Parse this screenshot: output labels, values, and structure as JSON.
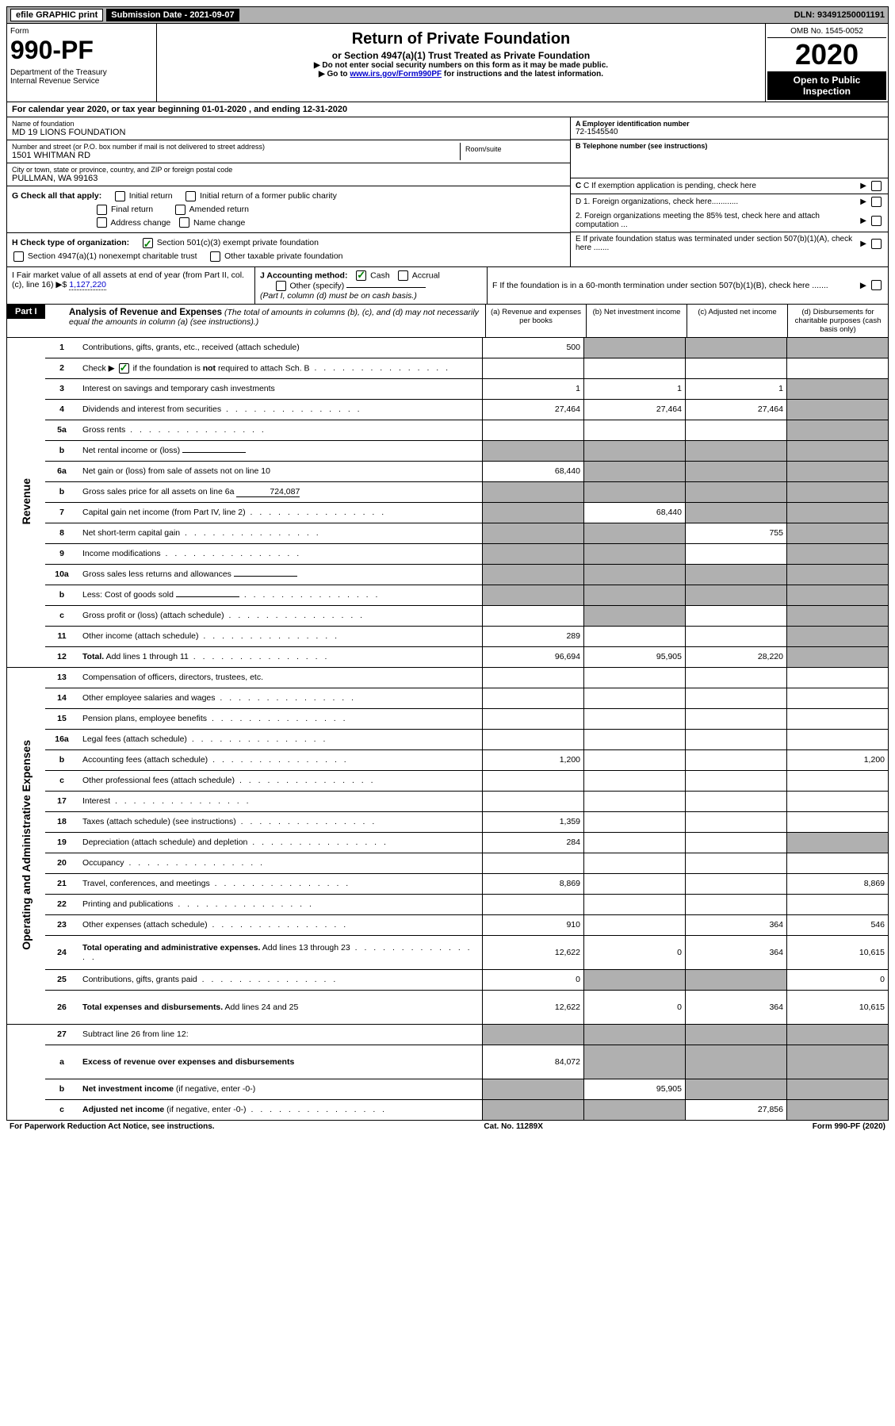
{
  "top": {
    "efile": "efile GRAPHIC print",
    "submission": "Submission Date - 2021-09-07",
    "dln": "DLN: 93491250001191"
  },
  "hdr": {
    "form": "Form",
    "form_no": "990-PF",
    "dept": "Department of the Treasury\nInternal Revenue Service",
    "title": "Return of Private Foundation",
    "subtitle": "or Section 4947(a)(1) Trust Treated as Private Foundation",
    "note1": "▶ Do not enter social security numbers on this form as it may be made public.",
    "note2": "▶ Go to ",
    "note2_link": "www.irs.gov/Form990PF",
    "note2_tail": " for instructions and the latest information.",
    "omb": "OMB No. 1545-0052",
    "year": "2020",
    "open": "Open to Public Inspection"
  },
  "cal": "For calendar year 2020, or tax year beginning 01-01-2020                            , and ending 12-31-2020",
  "name": {
    "label": "Name of foundation",
    "val": "MD 19 LIONS FOUNDATION"
  },
  "ein": {
    "label": "A Employer identification number",
    "val": "72-1545540"
  },
  "addr": {
    "label": "Number and street (or P.O. box number if mail is not delivered to street address)",
    "val": "1501 WHITMAN RD",
    "room_label": "Room/suite"
  },
  "tel": {
    "label": "B Telephone number (see instructions)"
  },
  "city": {
    "label": "City or town, state or province, country, and ZIP or foreign postal code",
    "val": "PULLMAN, WA  99163"
  },
  "c_label": "C If exemption application is pending, check here",
  "g": {
    "label": "G Check all that apply:",
    "initial": "Initial return",
    "initial_former": "Initial return of a former public charity",
    "final": "Final return",
    "amended": "Amended return",
    "addr_change": "Address change",
    "name_change": "Name change"
  },
  "d": {
    "d1": "D 1. Foreign organizations, check here............",
    "d2": "2. Foreign organizations meeting the 85% test, check here and attach computation ..."
  },
  "h": {
    "label": "H Check type of organization:",
    "s501": "Section 501(c)(3) exempt private foundation",
    "s4947": "Section 4947(a)(1) nonexempt charitable trust",
    "other_tax": "Other taxable private foundation"
  },
  "e_label": "E  If private foundation status was terminated under section 507(b)(1)(A), check here .......",
  "i": {
    "label": "I Fair market value of all assets at end of year (from Part II, col. (c), line 16) ▶$",
    "val": "1,127,220"
  },
  "j": {
    "label": "J Accounting method:",
    "cash": "Cash",
    "accrual": "Accrual",
    "other": "Other (specify)",
    "note": "(Part I, column (d) must be on cash basis.)"
  },
  "f_label": "F  If the foundation is in a 60-month termination under section 507(b)(1)(B), check here .......",
  "part1": {
    "label": "Part I",
    "title": "Analysis of Revenue and Expenses",
    "desc": "(The total of amounts in columns (b), (c), and (d) may not necessarily equal the amounts in column (a) (see instructions).)",
    "col_a": "(a)   Revenue and expenses per books",
    "col_b": "(b)   Net investment income",
    "col_c": "(c)   Adjusted net income",
    "col_d": "(d)   Disbursements for charitable purposes (cash basis only)"
  },
  "side_rev": "Revenue",
  "side_exp": "Operating and Administrative Expenses",
  "rows": [
    {
      "n": "1",
      "desc": "Contributions, gifts, grants, etc., received (attach schedule)",
      "a": "500",
      "b": "",
      "c": "",
      "d": "",
      "shade": [
        "b",
        "c",
        "d"
      ]
    },
    {
      "n": "2",
      "desc": "Check ▶",
      "desc_tail": " if the foundation is <b>not</b> required to attach Sch. B",
      "checked": true,
      "dots": true,
      "nocol": true
    },
    {
      "n": "3",
      "desc": "Interest on savings and temporary cash investments",
      "a": "1",
      "b": "1",
      "c": "1",
      "d": "",
      "shade": [
        "d"
      ]
    },
    {
      "n": "4",
      "desc": "Dividends and interest from securities",
      "dots": true,
      "a": "27,464",
      "b": "27,464",
      "c": "27,464",
      "d": "",
      "shade": [
        "d"
      ]
    },
    {
      "n": "5a",
      "desc": "Gross rents",
      "dots": true,
      "a": "",
      "b": "",
      "c": "",
      "d": "",
      "shade": [
        "d"
      ]
    },
    {
      "n": "b",
      "desc": "Net rental income or (loss)",
      "inline_fill": "",
      "side_only": true,
      "shade": [
        "a",
        "b",
        "c",
        "d"
      ]
    },
    {
      "n": "6a",
      "desc": "Net gain or (loss) from sale of assets not on line 10",
      "a": "68,440",
      "b": "",
      "c": "",
      "d": "",
      "shade": [
        "b",
        "c",
        "d"
      ]
    },
    {
      "n": "b",
      "desc": "Gross sales price for all assets on line 6a",
      "inline_fill": "724,087",
      "side_only": true,
      "shade": [
        "a",
        "b",
        "c",
        "d"
      ]
    },
    {
      "n": "7",
      "desc": "Capital gain net income (from Part IV, line 2)",
      "dots": true,
      "a": "",
      "b": "68,440",
      "c": "",
      "d": "",
      "shade": [
        "a",
        "c",
        "d"
      ]
    },
    {
      "n": "8",
      "desc": "Net short-term capital gain",
      "dots": true,
      "a": "",
      "b": "",
      "c": "755",
      "d": "",
      "shade": [
        "a",
        "b",
        "d"
      ]
    },
    {
      "n": "9",
      "desc": "Income modifications",
      "dots": true,
      "a": "",
      "b": "",
      "c": "",
      "d": "",
      "shade": [
        "a",
        "b",
        "d"
      ]
    },
    {
      "n": "10a",
      "desc": "Gross sales less returns and allowances",
      "inline_fill": "",
      "side_only": true,
      "shade": [
        "a",
        "b",
        "c",
        "d"
      ]
    },
    {
      "n": "b",
      "desc": "Less: Cost of goods sold",
      "dots": true,
      "inline_fill": "",
      "side_only": true,
      "shade": [
        "a",
        "b",
        "c",
        "d"
      ]
    },
    {
      "n": "c",
      "desc": "Gross profit or (loss) (attach schedule)",
      "dots": true,
      "a": "",
      "b": "",
      "c": "",
      "d": "",
      "shade": [
        "b",
        "d"
      ]
    },
    {
      "n": "11",
      "desc": "Other income (attach schedule)",
      "dots": true,
      "a": "289",
      "b": "",
      "c": "",
      "d": "",
      "shade": [
        "d"
      ]
    },
    {
      "n": "12",
      "desc": "<b>Total.</b> Add lines 1 through 11",
      "dots": true,
      "a": "96,694",
      "b": "95,905",
      "c": "28,220",
      "d": "",
      "shade": [
        "d"
      ]
    }
  ],
  "rows_exp": [
    {
      "n": "13",
      "desc": "Compensation of officers, directors, trustees, etc.",
      "a": "",
      "b": "",
      "c": "",
      "d": ""
    },
    {
      "n": "14",
      "desc": "Other employee salaries and wages",
      "dots": true,
      "a": "",
      "b": "",
      "c": "",
      "d": ""
    },
    {
      "n": "15",
      "desc": "Pension plans, employee benefits",
      "dots": true,
      "a": "",
      "b": "",
      "c": "",
      "d": ""
    },
    {
      "n": "16a",
      "desc": "Legal fees (attach schedule)",
      "dots": true,
      "a": "",
      "b": "",
      "c": "",
      "d": ""
    },
    {
      "n": "b",
      "desc": "Accounting fees (attach schedule)",
      "dots": true,
      "a": "1,200",
      "b": "",
      "c": "",
      "d": "1,200"
    },
    {
      "n": "c",
      "desc": "Other professional fees (attach schedule)",
      "dots": true,
      "a": "",
      "b": "",
      "c": "",
      "d": ""
    },
    {
      "n": "17",
      "desc": "Interest",
      "dots": true,
      "a": "",
      "b": "",
      "c": "",
      "d": ""
    },
    {
      "n": "18",
      "desc": "Taxes (attach schedule) (see instructions)",
      "dots": true,
      "a": "1,359",
      "b": "",
      "c": "",
      "d": ""
    },
    {
      "n": "19",
      "desc": "Depreciation (attach schedule) and depletion",
      "dots": true,
      "a": "284",
      "b": "",
      "c": "",
      "d": "",
      "shade": [
        "d"
      ]
    },
    {
      "n": "20",
      "desc": "Occupancy",
      "dots": true,
      "a": "",
      "b": "",
      "c": "",
      "d": ""
    },
    {
      "n": "21",
      "desc": "Travel, conferences, and meetings",
      "dots": true,
      "a": "8,869",
      "b": "",
      "c": "",
      "d": "8,869"
    },
    {
      "n": "22",
      "desc": "Printing and publications",
      "dots": true,
      "a": "",
      "b": "",
      "c": "",
      "d": ""
    },
    {
      "n": "23",
      "desc": "Other expenses (attach schedule)",
      "dots": true,
      "a": "910",
      "b": "",
      "c": "364",
      "d": "546"
    },
    {
      "n": "24",
      "desc": "<b>Total operating and administrative expenses.</b> Add lines 13 through 23",
      "dots": true,
      "a": "12,622",
      "b": "0",
      "c": "364",
      "d": "10,615",
      "tall": true
    },
    {
      "n": "25",
      "desc": "Contributions, gifts, grants paid",
      "dots": true,
      "a": "0",
      "b": "",
      "c": "",
      "d": "0",
      "shade": [
        "b",
        "c"
      ]
    },
    {
      "n": "26",
      "desc": "<b>Total expenses and disbursements.</b> Add lines 24 and 25",
      "a": "12,622",
      "b": "0",
      "c": "364",
      "d": "10,615",
      "tall": true
    }
  ],
  "rows_net": [
    {
      "n": "27",
      "desc": "Subtract line 26 from line 12:",
      "shade": [
        "a",
        "b",
        "c",
        "d"
      ]
    },
    {
      "n": "a",
      "desc": "<b>Excess of revenue over expenses and disbursements</b>",
      "a": "84,072",
      "b": "",
      "c": "",
      "d": "",
      "shade": [
        "b",
        "c",
        "d"
      ],
      "tall": true
    },
    {
      "n": "b",
      "desc": "<b>Net investment income</b> (if negative, enter -0-)",
      "a": "",
      "b": "95,905",
      "c": "",
      "d": "",
      "shade": [
        "a",
        "c",
        "d"
      ]
    },
    {
      "n": "c",
      "desc": "<b>Adjusted net income</b> (if negative, enter -0-)",
      "dots": true,
      "a": "",
      "b": "",
      "c": "27,856",
      "d": "",
      "shade": [
        "a",
        "b",
        "d"
      ]
    }
  ],
  "footer": {
    "left": "For Paperwork Reduction Act Notice, see instructions.",
    "mid": "Cat. No. 11289X",
    "right": "Form 990-PF (2020)"
  }
}
